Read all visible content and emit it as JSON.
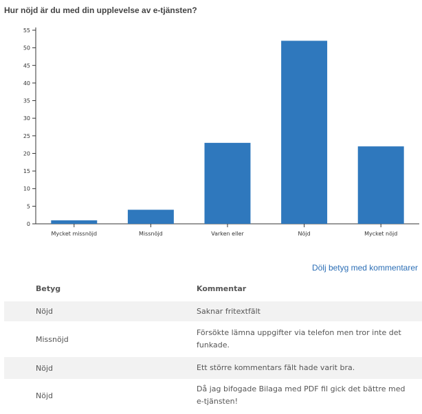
{
  "chart_data": {
    "type": "bar",
    "title": "Hur nöjd är du med din upplevelse av e-tjänsten?",
    "categories": [
      "Mycket missnöjd",
      "Missnöjd",
      "Varken eller",
      "Nöjd",
      "Mycket nöjd"
    ],
    "values": [
      1,
      4,
      23,
      52,
      22
    ],
    "ylim": [
      0,
      55
    ],
    "yticks": [
      0,
      5,
      10,
      15,
      20,
      25,
      30,
      35,
      40,
      45,
      50,
      55
    ],
    "xlabel": "",
    "ylabel": "",
    "grid": false,
    "bar_color": "#2f78bd"
  },
  "toggle_link": "Dölj betyg med kommentarer",
  "table": {
    "headers": [
      "Betyg",
      "Kommentar"
    ],
    "rows": [
      {
        "rating": "Nöjd",
        "comment": "Saknar fritextfält"
      },
      {
        "rating": "Missnöjd",
        "comment": "Försökte lämna uppgifter via telefon men tror inte det funkade."
      },
      {
        "rating": "Nöjd",
        "comment": "Ett större kommentars fält hade varit bra."
      },
      {
        "rating": "Nöjd",
        "comment": "Då jag bifogade Bilaga med PDF fil gick det bättre med e-tjänsten!"
      }
    ]
  }
}
